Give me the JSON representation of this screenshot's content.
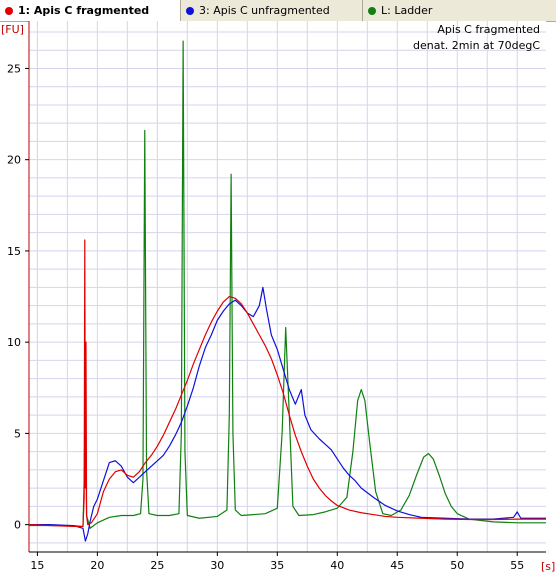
{
  "tabs": [
    {
      "label": "1: Apis C fragmented",
      "color": "#e00000",
      "active": true
    },
    {
      "label": "3: Apis C unfragmented",
      "color": "#1010dd",
      "active": false
    },
    {
      "label": "L: Ladder",
      "color": "#108010",
      "active": false
    }
  ],
  "chart_data": {
    "type": "line",
    "y_unit": "[FU]",
    "x_unit": "[s]",
    "annotation": [
      "Apis C fragmented",
      "denat. 2min at 70degC"
    ],
    "xlim": [
      14.3,
      57.4
    ],
    "ylim": [
      -1.5,
      27.6
    ],
    "x_ticks": [
      15,
      20,
      25,
      30,
      35,
      40,
      45,
      50,
      55
    ],
    "y_ticks": [
      0,
      5,
      10,
      15,
      20,
      25
    ],
    "grid": true,
    "series": [
      {
        "name": "1: Apis C fragmented",
        "color": "#e00000",
        "points": [
          [
            14.3,
            0.0
          ],
          [
            16,
            -0.05
          ],
          [
            18,
            -0.1
          ],
          [
            18.8,
            -0.1
          ],
          [
            18.9,
            1.5
          ],
          [
            18.95,
            15.6
          ],
          [
            19.0,
            2.0
          ],
          [
            19.05,
            10.0
          ],
          [
            19.1,
            0.5
          ],
          [
            19.2,
            0.0
          ],
          [
            19.5,
            0.1
          ],
          [
            20,
            0.6
          ],
          [
            20.5,
            1.8
          ],
          [
            21,
            2.5
          ],
          [
            21.5,
            2.9
          ],
          [
            22,
            3.0
          ],
          [
            22.5,
            2.7
          ],
          [
            23,
            2.6
          ],
          [
            23.5,
            2.9
          ],
          [
            24,
            3.4
          ],
          [
            24.5,
            3.8
          ],
          [
            25,
            4.3
          ],
          [
            25.5,
            4.9
          ],
          [
            26,
            5.6
          ],
          [
            26.5,
            6.3
          ],
          [
            27,
            7.1
          ],
          [
            27.5,
            7.9
          ],
          [
            28,
            8.8
          ],
          [
            28.5,
            9.6
          ],
          [
            29,
            10.4
          ],
          [
            29.5,
            11.1
          ],
          [
            30,
            11.7
          ],
          [
            30.5,
            12.2
          ],
          [
            31,
            12.5
          ],
          [
            31.5,
            12.4
          ],
          [
            32,
            12.1
          ],
          [
            32.5,
            11.6
          ],
          [
            33,
            11.0
          ],
          [
            33.5,
            10.4
          ],
          [
            34,
            9.8
          ],
          [
            34.5,
            9.1
          ],
          [
            35,
            8.2
          ],
          [
            35.5,
            7.2
          ],
          [
            36,
            6.0
          ],
          [
            36.5,
            4.9
          ],
          [
            37,
            4.0
          ],
          [
            37.5,
            3.2
          ],
          [
            38,
            2.5
          ],
          [
            38.5,
            2.0
          ],
          [
            39,
            1.6
          ],
          [
            39.5,
            1.3
          ],
          [
            40,
            1.05
          ],
          [
            41,
            0.8
          ],
          [
            42,
            0.65
          ],
          [
            43,
            0.55
          ],
          [
            44,
            0.45
          ],
          [
            45,
            0.4
          ],
          [
            47,
            0.35
          ],
          [
            49,
            0.3
          ],
          [
            51,
            0.28
          ],
          [
            53,
            0.28
          ],
          [
            55,
            0.3
          ],
          [
            57.4,
            0.3
          ]
        ]
      },
      {
        "name": "3: Apis C unfragmented",
        "color": "#1010dd",
        "points": [
          [
            14.3,
            0.0
          ],
          [
            16,
            0.0
          ],
          [
            18,
            -0.05
          ],
          [
            18.8,
            -0.2
          ],
          [
            19.0,
            -0.9
          ],
          [
            19.2,
            -0.5
          ],
          [
            19.4,
            0.2
          ],
          [
            19.7,
            1.0
          ],
          [
            20,
            1.4
          ],
          [
            20.5,
            2.4
          ],
          [
            21,
            3.4
          ],
          [
            21.5,
            3.5
          ],
          [
            22,
            3.2
          ],
          [
            22.5,
            2.6
          ],
          [
            23,
            2.3
          ],
          [
            23.5,
            2.6
          ],
          [
            24,
            2.9
          ],
          [
            24.5,
            3.2
          ],
          [
            25,
            3.5
          ],
          [
            25.5,
            3.8
          ],
          [
            26,
            4.3
          ],
          [
            26.5,
            4.9
          ],
          [
            27,
            5.6
          ],
          [
            27.5,
            6.5
          ],
          [
            28,
            7.5
          ],
          [
            28.5,
            8.7
          ],
          [
            29,
            9.7
          ],
          [
            29.5,
            10.4
          ],
          [
            30,
            11.2
          ],
          [
            30.5,
            11.7
          ],
          [
            31,
            12.1
          ],
          [
            31.5,
            12.3
          ],
          [
            32,
            12.0
          ],
          [
            32.5,
            11.6
          ],
          [
            33,
            11.4
          ],
          [
            33.5,
            12.0
          ],
          [
            33.8,
            13.0
          ],
          [
            34.1,
            11.8
          ],
          [
            34.5,
            10.4
          ],
          [
            35,
            9.6
          ],
          [
            35.5,
            8.5
          ],
          [
            36,
            7.4
          ],
          [
            36.5,
            6.6
          ],
          [
            37,
            7.4
          ],
          [
            37.3,
            6.0
          ],
          [
            37.8,
            5.2
          ],
          [
            38.5,
            4.7
          ],
          [
            39,
            4.4
          ],
          [
            39.5,
            4.1
          ],
          [
            40,
            3.6
          ],
          [
            40.5,
            3.1
          ],
          [
            41,
            2.7
          ],
          [
            41.5,
            2.4
          ],
          [
            42,
            2.0
          ],
          [
            43,
            1.5
          ],
          [
            44,
            1.05
          ],
          [
            45,
            0.75
          ],
          [
            46,
            0.55
          ],
          [
            47,
            0.4
          ],
          [
            49,
            0.35
          ],
          [
            51,
            0.3
          ],
          [
            53,
            0.3
          ],
          [
            54.7,
            0.4
          ],
          [
            55,
            0.7
          ],
          [
            55.3,
            0.35
          ],
          [
            57.4,
            0.35
          ]
        ]
      },
      {
        "name": "L: Ladder",
        "color": "#108010",
        "points": [
          [
            14.3,
            -0.05
          ],
          [
            18,
            -0.05
          ],
          [
            18.8,
            -0.1
          ],
          [
            18.9,
            2.5
          ],
          [
            19.0,
            7.5
          ],
          [
            19.1,
            0.5
          ],
          [
            19.4,
            -0.2
          ],
          [
            20,
            0.1
          ],
          [
            21,
            0.4
          ],
          [
            22,
            0.5
          ],
          [
            23,
            0.5
          ],
          [
            23.6,
            0.6
          ],
          [
            23.8,
            2.5
          ],
          [
            23.95,
            21.6
          ],
          [
            24.1,
            3.0
          ],
          [
            24.3,
            0.6
          ],
          [
            25,
            0.5
          ],
          [
            26,
            0.5
          ],
          [
            26.8,
            0.6
          ],
          [
            27.0,
            5.0
          ],
          [
            27.15,
            26.5
          ],
          [
            27.3,
            4.0
          ],
          [
            27.5,
            0.5
          ],
          [
            28.5,
            0.35
          ],
          [
            30,
            0.45
          ],
          [
            30.8,
            0.8
          ],
          [
            31.0,
            6.0
          ],
          [
            31.15,
            19.2
          ],
          [
            31.3,
            5.0
          ],
          [
            31.5,
            0.8
          ],
          [
            32,
            0.5
          ],
          [
            34,
            0.6
          ],
          [
            35,
            0.9
          ],
          [
            35.4,
            5.0
          ],
          [
            35.7,
            10.8
          ],
          [
            36.0,
            6.0
          ],
          [
            36.3,
            1.0
          ],
          [
            36.8,
            0.5
          ],
          [
            38,
            0.55
          ],
          [
            39,
            0.7
          ],
          [
            40,
            0.9
          ],
          [
            40.8,
            1.5
          ],
          [
            41.3,
            4.0
          ],
          [
            41.7,
            6.8
          ],
          [
            42.0,
            7.4
          ],
          [
            42.3,
            6.8
          ],
          [
            42.7,
            4.5
          ],
          [
            43.2,
            1.8
          ],
          [
            43.8,
            0.6
          ],
          [
            44.5,
            0.5
          ],
          [
            45.3,
            0.8
          ],
          [
            46,
            1.6
          ],
          [
            46.6,
            2.7
          ],
          [
            47.2,
            3.7
          ],
          [
            47.6,
            3.9
          ],
          [
            48.0,
            3.6
          ],
          [
            48.5,
            2.7
          ],
          [
            49,
            1.7
          ],
          [
            49.5,
            1.0
          ],
          [
            50,
            0.6
          ],
          [
            51,
            0.3
          ],
          [
            53,
            0.15
          ],
          [
            55,
            0.1
          ],
          [
            57.4,
            0.1
          ]
        ]
      }
    ]
  }
}
